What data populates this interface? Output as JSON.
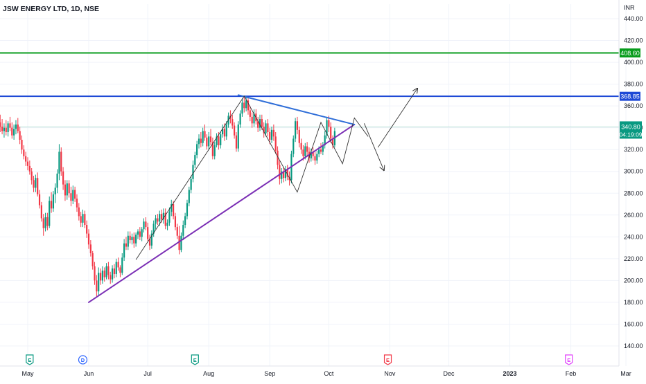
{
  "chart_data": {
    "type": "candlestick",
    "title": "JSW ENERGY LTD, 1D, NSE",
    "currency": "INR",
    "grid": true,
    "y_ticks": [
      "140.00",
      "160.00",
      "180.00",
      "200.00",
      "220.00",
      "240.00",
      "260.00",
      "280.00",
      "300.00",
      "320.00",
      "340.00",
      "360.00",
      "380.00",
      "400.00",
      "420.00",
      "440.00"
    ],
    "y_tick_values": [
      140,
      160,
      180,
      200,
      220,
      240,
      260,
      280,
      300,
      320,
      340,
      360,
      380,
      400,
      420,
      440
    ],
    "ylim": [
      128,
      449
    ],
    "x_tick_labels": [
      {
        "label": "May",
        "day": 0,
        "bold": false
      },
      {
        "label": "Jun",
        "day": 31,
        "bold": false
      },
      {
        "label": "Jul",
        "day": 61,
        "bold": false
      },
      {
        "label": "Aug",
        "day": 92,
        "bold": false
      },
      {
        "label": "Sep",
        "day": 123,
        "bold": false
      },
      {
        "label": "Oct",
        "day": 153,
        "bold": false
      },
      {
        "label": "Nov",
        "day": 184,
        "bold": false
      },
      {
        "label": "Dec",
        "day": 214,
        "bold": false
      },
      {
        "label": "2023",
        "day": 245,
        "bold": true
      },
      {
        "label": "Feb",
        "day": 276,
        "bold": false
      },
      {
        "label": "Mar",
        "day": 304,
        "bold": false
      }
    ],
    "xlim_days": [
      -14,
      314
    ],
    "events": [
      {
        "letter": "E",
        "day": 1,
        "color": "#089981",
        "shape": "square"
      },
      {
        "letter": "D",
        "day": 28,
        "color": "#2962ff",
        "shape": "circle"
      },
      {
        "letter": "E",
        "day": 85,
        "color": "#089981",
        "shape": "square"
      },
      {
        "letter": "E",
        "day": 183,
        "color": "#f23645",
        "shape": "square"
      },
      {
        "letter": "E",
        "day": 275,
        "color": "#e040fb",
        "shape": "square"
      }
    ],
    "price_lines": [
      {
        "value": 408.6,
        "label": "408.60",
        "color": "#089c1c"
      },
      {
        "value": 368.85,
        "label": "368.85",
        "color": "#1e49d6"
      }
    ],
    "current_price": {
      "value": 340.8,
      "label": "340.80",
      "countdown": "04:19:09",
      "color": "#089981"
    },
    "candles": [
      [
        -14,
        345,
        352,
        336,
        341
      ],
      [
        -13,
        341,
        348,
        334,
        337
      ],
      [
        -12,
        337,
        344,
        331,
        340
      ],
      [
        -11,
        340,
        347,
        333,
        336
      ],
      [
        -10,
        336,
        346,
        332,
        344
      ],
      [
        -9,
        344,
        350,
        337,
        340
      ],
      [
        -8,
        340,
        345,
        330,
        333
      ],
      [
        -7,
        333,
        343,
        329,
        339
      ],
      [
        -6,
        339,
        347,
        334,
        343
      ],
      [
        -5,
        343,
        349,
        335,
        337
      ],
      [
        -4,
        337,
        341,
        325,
        329
      ],
      [
        -3,
        329,
        333,
        316,
        320
      ],
      [
        -2,
        320,
        324,
        311,
        314
      ],
      [
        -1,
        314,
        318,
        305,
        309
      ],
      [
        0,
        309,
        313,
        301,
        305
      ],
      [
        1,
        305,
        310,
        297,
        300
      ],
      [
        2,
        300,
        303,
        288,
        292
      ],
      [
        3,
        292,
        296,
        281,
        285
      ],
      [
        4,
        285,
        297,
        281,
        294
      ],
      [
        5,
        294,
        299,
        277,
        279
      ],
      [
        6,
        279,
        283,
        266,
        269
      ],
      [
        7,
        269,
        272,
        254,
        257
      ],
      [
        8,
        257,
        261,
        241,
        248
      ],
      [
        9,
        248,
        262,
        245,
        258
      ],
      [
        10,
        258,
        262,
        246,
        250
      ],
      [
        11,
        250,
        277,
        248,
        273
      ],
      [
        12,
        273,
        281,
        262,
        266
      ],
      [
        13,
        266,
        282,
        263,
        279
      ],
      [
        14,
        279,
        289,
        271,
        285
      ],
      [
        15,
        285,
        302,
        280,
        298
      ],
      [
        16,
        298,
        325,
        292,
        318
      ],
      [
        17,
        318,
        322,
        296,
        300
      ],
      [
        18,
        300,
        304,
        283,
        288
      ],
      [
        19,
        288,
        292,
        273,
        278
      ],
      [
        20,
        278,
        292,
        274,
        289
      ],
      [
        21,
        289,
        292,
        276,
        280
      ],
      [
        22,
        280,
        286,
        268,
        273
      ],
      [
        23,
        273,
        287,
        270,
        283
      ],
      [
        24,
        283,
        286,
        272,
        275
      ],
      [
        25,
        275,
        279,
        263,
        267
      ],
      [
        26,
        267,
        271,
        255,
        259
      ],
      [
        27,
        259,
        263,
        249,
        253
      ],
      [
        28,
        253,
        265,
        249,
        261
      ],
      [
        29,
        261,
        264,
        248,
        251
      ],
      [
        30,
        251,
        255,
        239,
        243
      ],
      [
        31,
        243,
        247,
        229,
        233
      ],
      [
        32,
        233,
        237,
        222,
        225
      ],
      [
        33,
        225,
        227,
        210,
        213
      ],
      [
        34,
        213,
        217,
        196,
        200
      ],
      [
        35,
        200,
        205,
        185,
        190
      ],
      [
        36,
        190,
        212,
        186,
        207
      ],
      [
        37,
        207,
        211,
        196,
        200
      ],
      [
        38,
        200,
        213,
        197,
        209
      ],
      [
        39,
        209,
        212,
        199,
        203
      ],
      [
        40,
        203,
        216,
        201,
        213
      ],
      [
        41,
        213,
        217,
        201,
        205
      ],
      [
        42,
        205,
        208,
        197,
        201
      ],
      [
        43,
        201,
        214,
        198,
        211
      ],
      [
        44,
        211,
        215,
        202,
        206
      ],
      [
        45,
        206,
        220,
        203,
        217
      ],
      [
        46,
        217,
        221,
        209,
        212
      ],
      [
        47,
        212,
        214,
        203,
        207
      ],
      [
        48,
        207,
        225,
        205,
        221
      ],
      [
        49,
        221,
        238,
        218,
        234
      ],
      [
        50,
        234,
        240,
        228,
        231
      ],
      [
        51,
        231,
        245,
        228,
        241
      ],
      [
        52,
        241,
        245,
        234,
        237
      ],
      [
        53,
        237,
        243,
        233,
        240
      ],
      [
        54,
        240,
        244,
        230,
        234
      ],
      [
        55,
        234,
        244,
        231,
        242
      ],
      [
        56,
        242,
        247,
        238,
        245
      ],
      [
        57,
        245,
        249,
        237,
        240
      ],
      [
        58,
        240,
        249,
        236,
        247
      ],
      [
        59,
        247,
        257,
        244,
        254
      ],
      [
        60,
        254,
        258,
        246,
        249
      ],
      [
        61,
        249,
        253,
        236,
        238
      ],
      [
        62,
        238,
        242,
        228,
        232
      ],
      [
        63,
        232,
        246,
        229,
        243
      ],
      [
        64,
        243,
        255,
        240,
        252
      ],
      [
        65,
        252,
        260,
        247,
        257
      ],
      [
        66,
        257,
        261,
        251,
        254
      ],
      [
        67,
        254,
        264,
        250,
        261
      ],
      [
        68,
        261,
        265,
        253,
        256
      ],
      [
        69,
        256,
        266,
        252,
        262
      ],
      [
        70,
        262,
        266,
        247,
        250
      ],
      [
        71,
        250,
        256,
        246,
        253
      ],
      [
        72,
        253,
        267,
        250,
        263
      ],
      [
        73,
        263,
        274,
        259,
        270
      ],
      [
        74,
        270,
        273,
        256,
        259
      ],
      [
        75,
        259,
        262,
        246,
        249
      ],
      [
        76,
        249,
        252,
        238,
        241
      ],
      [
        77,
        241,
        250,
        224,
        228
      ],
      [
        78,
        228,
        244,
        226,
        241
      ],
      [
        79,
        241,
        255,
        237,
        251
      ],
      [
        80,
        251,
        262,
        248,
        259
      ],
      [
        81,
        259,
        274,
        256,
        271
      ],
      [
        82,
        271,
        286,
        268,
        283
      ],
      [
        83,
        283,
        296,
        280,
        293
      ],
      [
        84,
        293,
        310,
        290,
        306
      ],
      [
        85,
        306,
        318,
        303,
        315
      ],
      [
        86,
        315,
        328,
        312,
        325
      ],
      [
        87,
        325,
        334,
        321,
        330
      ],
      [
        88,
        330,
        336,
        322,
        326
      ],
      [
        89,
        326,
        340,
        323,
        337
      ],
      [
        90,
        337,
        343,
        328,
        331
      ],
      [
        91,
        331,
        334,
        320,
        323
      ],
      [
        92,
        323,
        336,
        320,
        332
      ],
      [
        93,
        332,
        339,
        324,
        327
      ],
      [
        94,
        327,
        331,
        311,
        314
      ],
      [
        95,
        314,
        327,
        311,
        324
      ],
      [
        96,
        324,
        335,
        322,
        332
      ],
      [
        97,
        332,
        336,
        320,
        324
      ],
      [
        98,
        324,
        336,
        321,
        334
      ],
      [
        99,
        334,
        343,
        331,
        339
      ],
      [
        100,
        339,
        344,
        328,
        332
      ],
      [
        101,
        332,
        346,
        329,
        343
      ],
      [
        102,
        343,
        354,
        340,
        351
      ],
      [
        103,
        351,
        356,
        344,
        348
      ],
      [
        104,
        348,
        352,
        339,
        342
      ],
      [
        105,
        342,
        345,
        330,
        333
      ],
      [
        106,
        333,
        336,
        318,
        321
      ],
      [
        107,
        321,
        346,
        318,
        343
      ],
      [
        108,
        343,
        356,
        340,
        353
      ],
      [
        109,
        353,
        367,
        350,
        363
      ],
      [
        110,
        363,
        368,
        354,
        358
      ],
      [
        111,
        358,
        369,
        355,
        365
      ],
      [
        112,
        365,
        368,
        352,
        356
      ],
      [
        113,
        356,
        360,
        346,
        350
      ],
      [
        114,
        350,
        354,
        340,
        344
      ],
      [
        115,
        344,
        357,
        341,
        353
      ],
      [
        116,
        353,
        357,
        343,
        346
      ],
      [
        117,
        346,
        350,
        336,
        340
      ],
      [
        118,
        340,
        352,
        337,
        348
      ],
      [
        119,
        348,
        352,
        338,
        341
      ],
      [
        120,
        341,
        345,
        331,
        335
      ],
      [
        121,
        335,
        347,
        332,
        344
      ],
      [
        122,
        344,
        348,
        332,
        336
      ],
      [
        123,
        336,
        340,
        325,
        329
      ],
      [
        124,
        329,
        341,
        326,
        338
      ],
      [
        125,
        338,
        343,
        328,
        332
      ],
      [
        126,
        332,
        336,
        316,
        319
      ],
      [
        127,
        319,
        323,
        302,
        306
      ],
      [
        128,
        306,
        310,
        288,
        293
      ],
      [
        129,
        293,
        303,
        289,
        300
      ],
      [
        130,
        300,
        304,
        290,
        294
      ],
      [
        131,
        294,
        305,
        291,
        302
      ],
      [
        132,
        302,
        306,
        292,
        295
      ],
      [
        133,
        295,
        300,
        287,
        292
      ],
      [
        134,
        292,
        319,
        289,
        316
      ],
      [
        135,
        316,
        333,
        313,
        330
      ],
      [
        136,
        330,
        349,
        327,
        346
      ],
      [
        137,
        346,
        350,
        334,
        338
      ],
      [
        138,
        338,
        341,
        322,
        326
      ],
      [
        139,
        326,
        330,
        316,
        320
      ],
      [
        140,
        320,
        324,
        310,
        314
      ],
      [
        141,
        314,
        326,
        311,
        323
      ],
      [
        142,
        323,
        327,
        314,
        318
      ],
      [
        143,
        318,
        322,
        308,
        312
      ],
      [
        144,
        312,
        321,
        309,
        318
      ],
      [
        145,
        318,
        322,
        310,
        314
      ],
      [
        146,
        314,
        318,
        306,
        310
      ],
      [
        147,
        310,
        319,
        307,
        316
      ],
      [
        148,
        316,
        323,
        313,
        320
      ],
      [
        149,
        320,
        326,
        316,
        318
      ],
      [
        150,
        318,
        327,
        315,
        324
      ],
      [
        151,
        324,
        337,
        321,
        333
      ],
      [
        152,
        333,
        350,
        330,
        347
      ],
      [
        153,
        347,
        351,
        336,
        341
      ],
      [
        154,
        341,
        345,
        326,
        330
      ],
      [
        155,
        330,
        333,
        321,
        324
      ],
      [
        156,
        324,
        340,
        322,
        337
      ]
    ],
    "drawings": [
      {
        "kind": "trend",
        "color": "#7b2fb5",
        "width": 2,
        "from": [
          31,
          180
        ],
        "to": [
          166,
          343
        ]
      },
      {
        "kind": "trend",
        "color": "#2f6ed8",
        "width": 2,
        "from": [
          107,
          370
        ],
        "to": [
          166,
          343
        ]
      },
      {
        "kind": "path",
        "color": "#333333",
        "width": 0.9,
        "points": [
          [
            55,
            219
          ],
          [
            110,
            369
          ],
          [
            137,
            281
          ],
          [
            149,
            345
          ],
          [
            160,
            307
          ],
          [
            166,
            349
          ],
          [
            173,
            332
          ]
        ]
      },
      {
        "kind": "arrow",
        "color": "#333333",
        "width": 0.9,
        "from": [
          178,
          322
        ],
        "to": [
          198,
          376
        ]
      },
      {
        "kind": "arrow",
        "color": "#333333",
        "width": 0.9,
        "from": [
          171,
          344
        ],
        "to": [
          181,
          301
        ]
      }
    ]
  }
}
